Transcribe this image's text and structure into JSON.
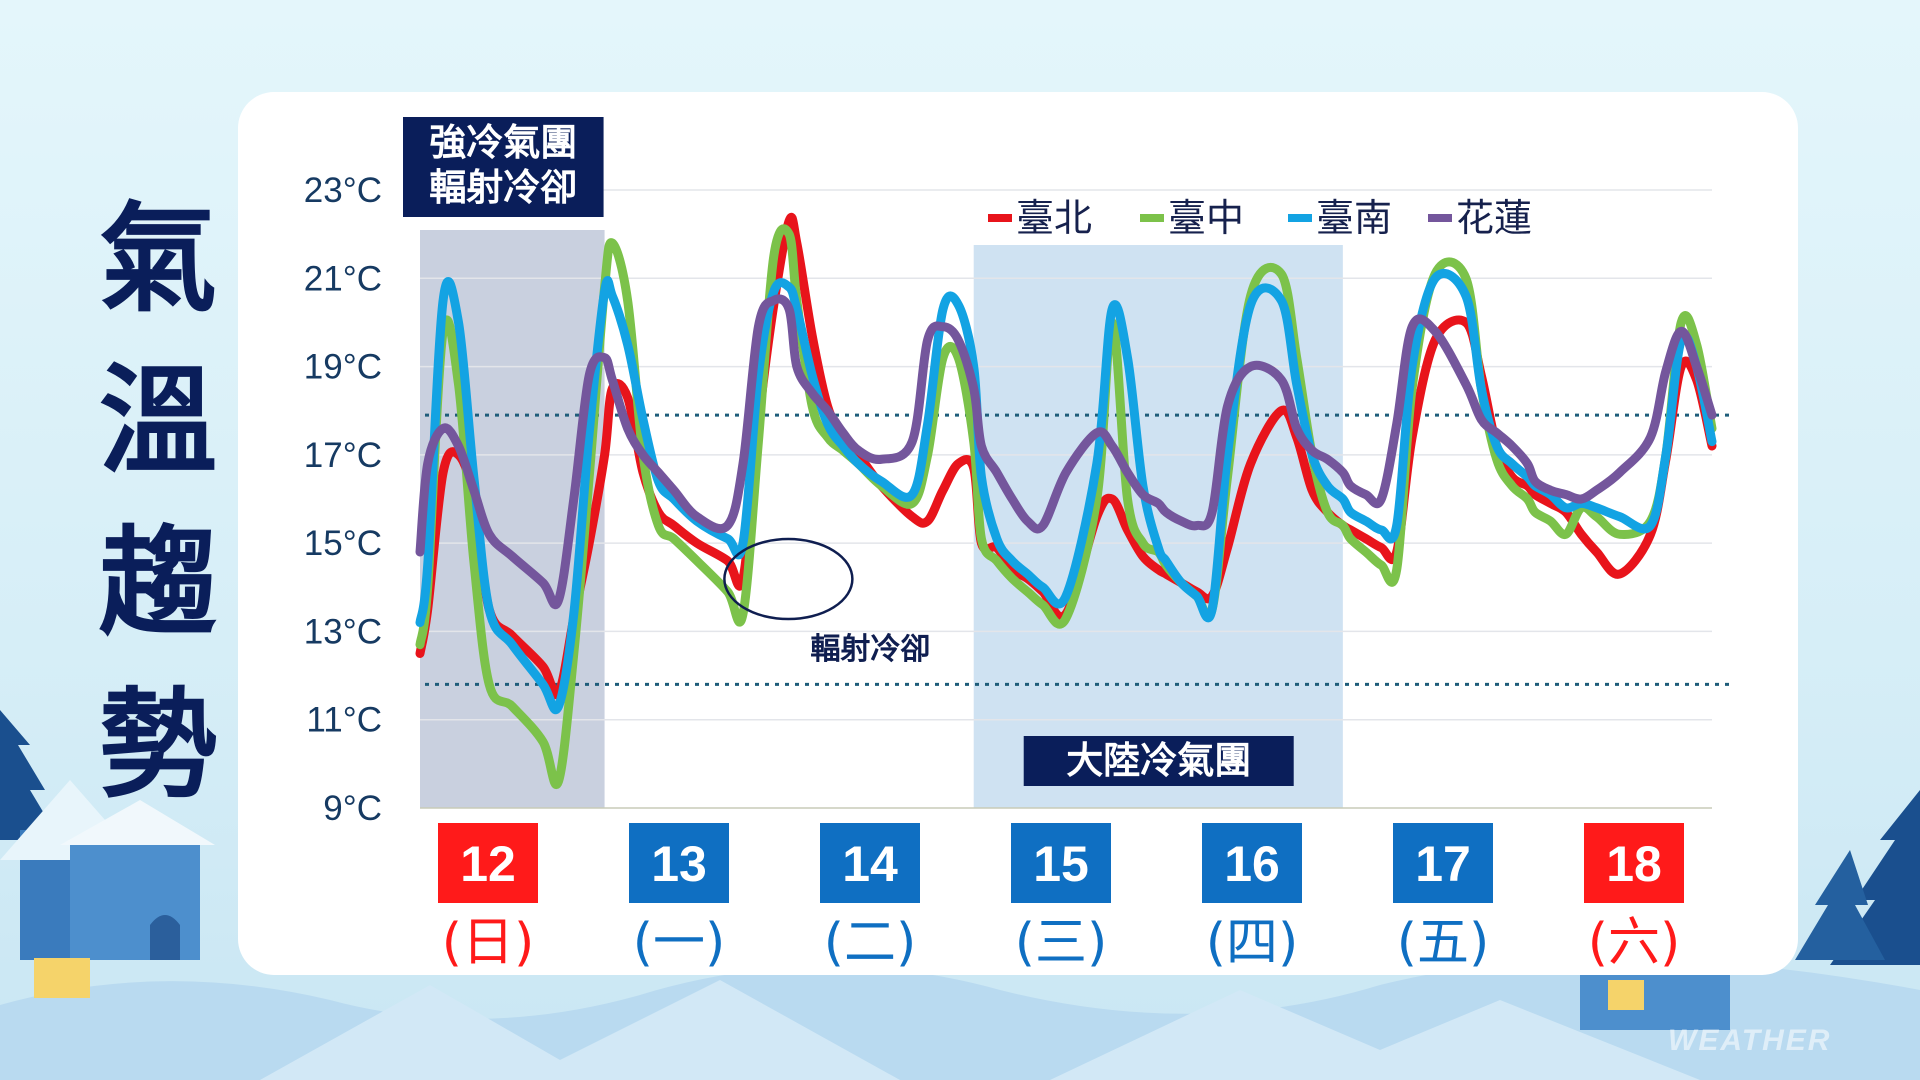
{
  "page_title": [
    "氣",
    "溫",
    "趨",
    "勢"
  ],
  "watermark": "WEATHER",
  "colors": {
    "taipei": "#e8141b",
    "taichung": "#7cc24a",
    "tainan": "#13a3e3",
    "hualien": "#74569c",
    "weekday": "#0f6fc2",
    "weekend": "#ff1a1a",
    "label_box": "#0a1e5a",
    "reference_line": "#1f5d7a"
  },
  "chart_data": {
    "type": "line",
    "ylim": [
      9,
      23
    ],
    "y_ticks": [
      "9°C",
      "11°C",
      "13°C",
      "15°C",
      "17°C",
      "19°C",
      "21°C",
      "23°C"
    ],
    "x_days": [
      {
        "date": "12",
        "weekday": "(日)",
        "weekend": true
      },
      {
        "date": "13",
        "weekday": "(一)",
        "weekend": false
      },
      {
        "date": "14",
        "weekday": "(二)",
        "weekend": false
      },
      {
        "date": "15",
        "weekday": "(三)",
        "weekend": false
      },
      {
        "date": "16",
        "weekday": "(四)",
        "weekend": false
      },
      {
        "date": "17",
        "weekday": "(五)",
        "weekend": false
      },
      {
        "date": "18",
        "weekday": "(六)",
        "weekend": true
      }
    ],
    "x_times": [
      0,
      1,
      3,
      5,
      7,
      9,
      12,
      16,
      18,
      20,
      22,
      24,
      25,
      27,
      29,
      31,
      33,
      36,
      40,
      42,
      44,
      46,
      48,
      49,
      51,
      53,
      55,
      57,
      60,
      64,
      66,
      68,
      70,
      72,
      73,
      75,
      77,
      79,
      81,
      84,
      88,
      90,
      92,
      94,
      96,
      97,
      99,
      101,
      103,
      105,
      108,
      112,
      114,
      116,
      118,
      120,
      121,
      123,
      125,
      127,
      129,
      132,
      136,
      138,
      140,
      142,
      144,
      145,
      147,
      149,
      151,
      153,
      156,
      160,
      162,
      164,
      166,
      168
    ],
    "series": [
      {
        "name": "臺北",
        "color_key": "taipei",
        "values": [
          12.5,
          13.5,
          16.6,
          17.0,
          16.0,
          13.5,
          12.9,
          12.2,
          11.6,
          13.3,
          15.0,
          17.0,
          18.5,
          18.3,
          16.6,
          15.7,
          15.4,
          15.0,
          14.6,
          14.2,
          17.7,
          20.4,
          22.3,
          21.8,
          19.7,
          18.1,
          17.4,
          17.0,
          16.3,
          15.6,
          15.5,
          16.2,
          16.8,
          16.7,
          15.0,
          14.9,
          14.4,
          14.2,
          13.9,
          13.4,
          15.6,
          16.0,
          15.3,
          14.7,
          14.4,
          14.3,
          14.1,
          13.9,
          13.8,
          14.9,
          16.8,
          18.0,
          17.4,
          16.2,
          15.7,
          15.4,
          15.3,
          15.1,
          14.9,
          14.8,
          17.4,
          19.6,
          20.0,
          18.8,
          17.2,
          16.5,
          16.3,
          16.1,
          15.9,
          15.7,
          15.2,
          14.8,
          14.3,
          15.2,
          16.9,
          19.0,
          18.7,
          17.2
        ]
      },
      {
        "name": "臺中",
        "color_key": "taichung",
        "values": [
          12.7,
          14.0,
          19.8,
          18.6,
          14.6,
          11.8,
          11.3,
          10.5,
          9.6,
          12.5,
          16.5,
          20.8,
          21.8,
          20.5,
          17.0,
          15.4,
          15.1,
          14.6,
          13.9,
          13.4,
          17.3,
          21.5,
          22.0,
          20.5,
          18.1,
          17.4,
          17.1,
          16.8,
          16.3,
          15.9,
          17.0,
          19.2,
          19.2,
          17.3,
          15.1,
          14.6,
          14.2,
          13.9,
          13.6,
          13.3,
          16.0,
          20.0,
          16.0,
          15.0,
          14.8,
          14.5,
          14.1,
          13.8,
          13.5,
          16.5,
          20.6,
          21.1,
          19.2,
          17.0,
          15.7,
          15.4,
          15.1,
          14.8,
          14.5,
          14.4,
          18.5,
          21.1,
          21.0,
          18.5,
          16.9,
          16.3,
          16.0,
          15.7,
          15.5,
          15.2,
          15.8,
          15.6,
          15.2,
          15.5,
          17.0,
          20.0,
          19.5,
          17.6
        ]
      },
      {
        "name": "臺南",
        "color_key": "tainan",
        "values": [
          13.2,
          14.5,
          20.5,
          20.0,
          16.5,
          13.5,
          12.7,
          11.8,
          11.3,
          13.4,
          17.5,
          20.7,
          20.6,
          19.5,
          17.8,
          16.4,
          16.0,
          15.5,
          15.1,
          15.0,
          18.8,
          20.7,
          20.8,
          20.3,
          18.8,
          17.7,
          17.2,
          16.8,
          16.4,
          16.1,
          17.7,
          20.3,
          20.4,
          19.0,
          16.5,
          15.1,
          14.6,
          14.3,
          14.0,
          13.8,
          16.8,
          20.3,
          19.2,
          16.3,
          14.9,
          14.6,
          14.1,
          13.8,
          13.5,
          17.0,
          20.4,
          20.5,
          18.6,
          17.0,
          16.3,
          16.0,
          15.7,
          15.5,
          15.3,
          15.4,
          19.0,
          21.0,
          20.6,
          18.5,
          17.2,
          16.8,
          16.5,
          16.3,
          16.1,
          15.8,
          15.9,
          15.8,
          15.6,
          15.4,
          17.0,
          19.6,
          19.0,
          17.3
        ]
      },
      {
        "name": "花蓮",
        "color_key": "hualien",
        "values": [
          14.8,
          16.8,
          17.6,
          17.2,
          16.2,
          15.2,
          14.7,
          14.1,
          13.7,
          16.0,
          18.8,
          19.2,
          18.7,
          17.6,
          17.0,
          16.6,
          16.2,
          15.6,
          15.4,
          16.8,
          19.9,
          20.5,
          20.3,
          19.0,
          18.4,
          18.0,
          17.5,
          17.1,
          16.9,
          17.3,
          19.6,
          19.9,
          19.6,
          18.5,
          17.2,
          16.6,
          16.0,
          15.5,
          15.4,
          16.6,
          17.5,
          17.2,
          16.6,
          16.1,
          15.9,
          15.7,
          15.5,
          15.4,
          15.7,
          18.1,
          19.0,
          18.7,
          17.6,
          17.1,
          16.9,
          16.6,
          16.3,
          16.1,
          16.0,
          17.7,
          19.9,
          19.8,
          18.6,
          17.8,
          17.5,
          17.2,
          16.8,
          16.4,
          16.2,
          16.1,
          16.0,
          16.2,
          16.6,
          17.4,
          18.9,
          19.8,
          19.0,
          17.9
        ]
      }
    ],
    "reference_lines": [
      17.9,
      11.8
    ],
    "shaded_regions": [
      {
        "from": 0,
        "to": 24,
        "label": [
          "強冷氣團",
          "輻射冷卻"
        ],
        "tone": "dark"
      },
      {
        "from": 72,
        "to": 120,
        "label": [
          "大陸冷氣團"
        ],
        "tone": "light"
      }
    ],
    "annotations": [
      {
        "text": "輻射冷卻",
        "at_time": 44,
        "at_value": 14.3
      }
    ]
  }
}
